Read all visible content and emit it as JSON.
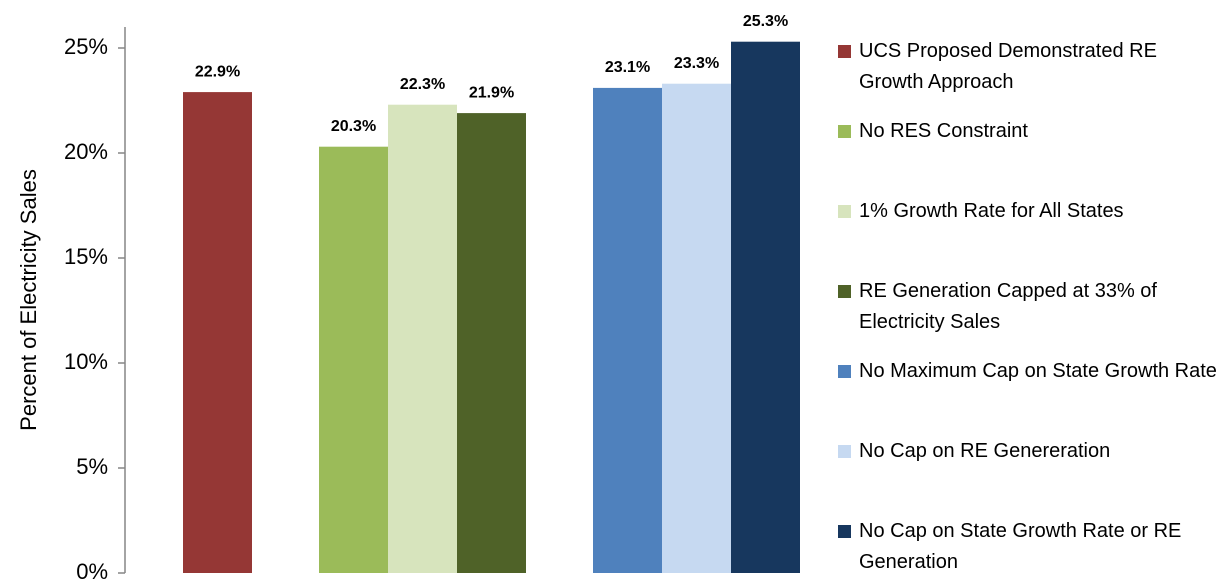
{
  "chart_data": {
    "type": "bar",
    "y_label": "Percent of  Electricity Sales",
    "categories": [
      null,
      null,
      null
    ],
    "ylim": [
      0,
      26
    ],
    "yticks": [
      {
        "value": 0,
        "label": "0%"
      },
      {
        "value": 5,
        "label": "5%"
      },
      {
        "value": 10,
        "label": "10%"
      },
      {
        "value": 15,
        "label": "15%"
      },
      {
        "value": 20,
        "label": "20%"
      },
      {
        "value": 25,
        "label": "25%"
      }
    ],
    "grid": false,
    "legend": "right",
    "series": [
      {
        "name": "UCS Proposed Demonstrated RE Growth Approach",
        "color": "#953735",
        "values": [
          22.9,
          null,
          null
        ],
        "value_labels": [
          "22.9%",
          null,
          null
        ]
      },
      {
        "name": "No RES Constraint",
        "color": "#9bbb59",
        "values": [
          null,
          20.3,
          null
        ],
        "value_labels": [
          null,
          "20.3%",
          null
        ]
      },
      {
        "name": "1% Growth Rate for All States",
        "color": "#d7e4bd",
        "values": [
          null,
          22.3,
          null
        ],
        "value_labels": [
          null,
          "22.3%",
          null
        ]
      },
      {
        "name": "RE Generation Capped at 33% of Electricity Sales",
        "color": "#4f6228",
        "values": [
          null,
          21.9,
          null
        ],
        "value_labels": [
          null,
          "21.9%",
          null
        ]
      },
      {
        "name": "No Maximum Cap on State Growth Rate",
        "color": "#4f81bd",
        "values": [
          null,
          null,
          23.1
        ],
        "value_labels": [
          null,
          null,
          "23.1%"
        ]
      },
      {
        "name": "No Cap on RE Genereration",
        "color": "#c6d9f1",
        "values": [
          null,
          null,
          23.3
        ],
        "value_labels": [
          null,
          null,
          "23.3%"
        ]
      },
      {
        "name": "No Cap on State Growth Rate or RE Generation",
        "color": "#17375e",
        "values": [
          null,
          null,
          25.3
        ],
        "value_labels": [
          null,
          null,
          "25.3%"
        ]
      }
    ]
  }
}
